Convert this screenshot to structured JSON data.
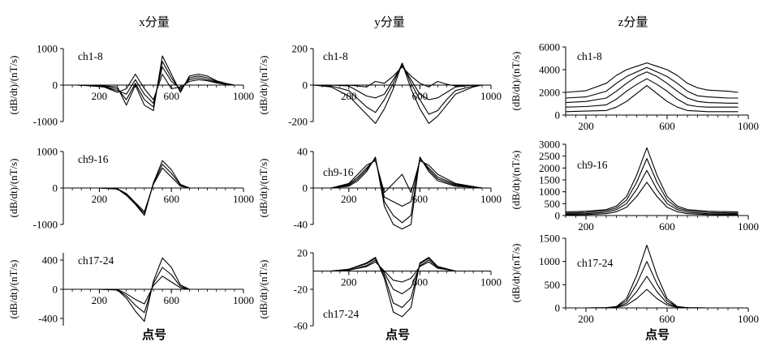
{
  "figure": {
    "column_titles": [
      "x分量",
      "y分量",
      "z分量"
    ],
    "xlabel": "点号",
    "ylabel": "(dB/dt)/(nT/s)"
  },
  "chart_data": [
    {
      "type": "line",
      "component": "x",
      "channel_label": "ch1-8",
      "xlim": [
        0,
        1000
      ],
      "ylim": [
        -1000,
        1000
      ],
      "x_ticks": [
        200,
        600,
        1000
      ],
      "y_ticks": [
        -1000,
        0,
        1000
      ],
      "x": [
        0,
        75,
        150,
        225,
        300,
        350,
        400,
        450,
        500,
        550,
        600,
        650,
        700,
        750,
        800,
        850,
        900,
        950
      ],
      "series": [
        {
          "values": [
            0,
            0,
            -20,
            -50,
            -200,
            -100,
            300,
            -100,
            -400,
            300,
            -100,
            -50,
            100,
            150,
            120,
            60,
            20,
            0
          ]
        },
        {
          "values": [
            0,
            0,
            -15,
            -50,
            -150,
            -250,
            150,
            -250,
            -500,
            500,
            100,
            -100,
            150,
            200,
            150,
            80,
            30,
            0
          ]
        },
        {
          "values": [
            0,
            0,
            -10,
            -40,
            -100,
            -400,
            50,
            -400,
            -600,
            650,
            200,
            -150,
            200,
            250,
            200,
            100,
            40,
            0
          ]
        },
        {
          "values": [
            0,
            0,
            -5,
            -20,
            -50,
            -550,
            0,
            -550,
            -700,
            800,
            300,
            -200,
            250,
            300,
            250,
            120,
            50,
            0
          ]
        }
      ]
    },
    {
      "type": "line",
      "component": "x",
      "channel_label": "ch9-16",
      "xlim": [
        0,
        1000
      ],
      "ylim": [
        -1000,
        1000
      ],
      "x_ticks": [
        200,
        600,
        1000
      ],
      "y_ticks": [
        -1000,
        0,
        1000
      ],
      "x": [
        0,
        100,
        200,
        300,
        350,
        400,
        450,
        500,
        550,
        600,
        650,
        700,
        800,
        950
      ],
      "series": [
        {
          "values": [
            0,
            0,
            0,
            -20,
            -150,
            -400,
            -650,
            100,
            550,
            300,
            50,
            0,
            0,
            0
          ]
        },
        {
          "values": [
            0,
            0,
            0,
            -25,
            -180,
            -430,
            -700,
            120,
            650,
            400,
            80,
            0,
            0,
            0
          ]
        },
        {
          "values": [
            0,
            0,
            0,
            -30,
            -200,
            -450,
            -750,
            140,
            750,
            500,
            100,
            0,
            0,
            0
          ]
        }
      ]
    },
    {
      "type": "line",
      "component": "x",
      "channel_label": "ch17-24",
      "xlim": [
        0,
        1000
      ],
      "ylim": [
        -500,
        500
      ],
      "x_ticks": [
        200,
        600,
        1000
      ],
      "y_ticks": [
        -400,
        0,
        400
      ],
      "x": [
        0,
        100,
        200,
        300,
        350,
        400,
        450,
        500,
        550,
        600,
        650,
        700,
        800,
        950
      ],
      "series": [
        {
          "values": [
            0,
            0,
            0,
            -5,
            -60,
            -140,
            -200,
            50,
            180,
            100,
            20,
            0,
            0,
            0
          ]
        },
        {
          "values": [
            0,
            0,
            0,
            -8,
            -90,
            -220,
            -320,
            80,
            300,
            200,
            40,
            0,
            0,
            0
          ]
        },
        {
          "values": [
            0,
            0,
            0,
            -10,
            -120,
            -300,
            -440,
            110,
            430,
            300,
            60,
            0,
            0,
            0
          ]
        }
      ]
    },
    {
      "type": "line",
      "component": "y",
      "channel_label": "ch1-8",
      "xlim": [
        0,
        1000
      ],
      "ylim": [
        -200,
        200
      ],
      "x_ticks": [
        200,
        600,
        1000
      ],
      "y_ticks": [
        -200,
        0,
        200
      ],
      "x": [
        0,
        100,
        200,
        300,
        350,
        400,
        450,
        500,
        550,
        600,
        650,
        700,
        750,
        800,
        900,
        950
      ],
      "series": [
        {
          "values": [
            0,
            0,
            0,
            -10,
            20,
            10,
            50,
            100,
            50,
            10,
            -10,
            20,
            5,
            -5,
            0,
            0
          ]
        },
        {
          "values": [
            0,
            0,
            -5,
            -60,
            -70,
            -50,
            30,
            110,
            30,
            -50,
            -80,
            -70,
            -40,
            -10,
            0,
            0
          ]
        },
        {
          "values": [
            0,
            -5,
            -30,
            -120,
            -150,
            -80,
            10,
            120,
            10,
            -80,
            -160,
            -140,
            -80,
            -30,
            -5,
            0
          ]
        },
        {
          "values": [
            0,
            -10,
            -60,
            -160,
            -210,
            -130,
            -20,
            120,
            -20,
            -130,
            -210,
            -170,
            -110,
            -50,
            -10,
            0
          ]
        }
      ]
    },
    {
      "type": "line",
      "component": "y",
      "channel_label": "ch9-16",
      "xlim": [
        0,
        1000
      ],
      "ylim": [
        -40,
        40
      ],
      "x_ticks": [
        200,
        600,
        1000
      ],
      "y_ticks": [
        -40,
        0,
        40
      ],
      "x": [
        0,
        100,
        200,
        250,
        300,
        350,
        400,
        450,
        500,
        550,
        600,
        650,
        700,
        800,
        950
      ],
      "series": [
        {
          "values": [
            0,
            0,
            5,
            15,
            25,
            30,
            -5,
            5,
            15,
            -5,
            30,
            25,
            15,
            5,
            0
          ]
        },
        {
          "values": [
            0,
            0,
            4,
            12,
            22,
            32,
            -10,
            -15,
            -20,
            -15,
            32,
            22,
            12,
            4,
            0
          ]
        },
        {
          "values": [
            0,
            0,
            3,
            10,
            20,
            33,
            -15,
            -30,
            -38,
            -30,
            33,
            20,
            10,
            3,
            0
          ]
        },
        {
          "values": [
            0,
            0,
            2,
            8,
            18,
            34,
            -20,
            -40,
            -45,
            -40,
            34,
            18,
            8,
            2,
            0
          ]
        }
      ]
    },
    {
      "type": "line",
      "component": "y",
      "channel_label": "ch17-24",
      "xlim": [
        0,
        1000
      ],
      "ylim": [
        -60,
        20
      ],
      "x_ticks": [
        200,
        600,
        1000
      ],
      "y_ticks": [
        -60,
        -20,
        20
      ],
      "x": [
        0,
        100,
        200,
        300,
        350,
        400,
        450,
        500,
        550,
        600,
        650,
        700,
        800,
        950
      ],
      "series": [
        {
          "values": [
            0,
            0,
            1,
            5,
            10,
            0,
            -10,
            -12,
            -8,
            5,
            10,
            3,
            0,
            0
          ]
        },
        {
          "values": [
            0,
            0,
            1,
            6,
            12,
            -2,
            -20,
            -25,
            -18,
            6,
            12,
            4,
            0,
            0
          ]
        },
        {
          "values": [
            0,
            0,
            2,
            8,
            14,
            -5,
            -35,
            -40,
            -30,
            8,
            14,
            5,
            0,
            0
          ]
        },
        {
          "values": [
            0,
            0,
            2,
            9,
            15,
            -8,
            -45,
            -50,
            -40,
            9,
            15,
            5,
            0,
            0
          ]
        }
      ]
    },
    {
      "type": "line",
      "component": "z",
      "channel_label": "ch1-8",
      "xlim": [
        100,
        1000
      ],
      "ylim": [
        0,
        6000
      ],
      "x_ticks": [
        200,
        600,
        1000
      ],
      "y_ticks": [
        0,
        2000,
        4000,
        6000
      ],
      "x": [
        100,
        200,
        300,
        350,
        400,
        450,
        500,
        550,
        600,
        650,
        700,
        750,
        800,
        900,
        950
      ],
      "series": [
        {
          "values": [
            2000,
            2150,
            2800,
            3500,
            4000,
            4300,
            4600,
            4300,
            4000,
            3500,
            2800,
            2400,
            2200,
            2100,
            2000
          ]
        },
        {
          "values": [
            1500,
            1600,
            2100,
            2800,
            3400,
            3800,
            4200,
            3800,
            3400,
            2800,
            2100,
            1700,
            1600,
            1500,
            1500
          ]
        },
        {
          "values": [
            1100,
            1200,
            1500,
            2100,
            2800,
            3400,
            3800,
            3400,
            2800,
            2100,
            1500,
            1200,
            1100,
            1050,
            1050
          ]
        },
        {
          "values": [
            700,
            750,
            900,
            1400,
            2100,
            2700,
            3200,
            2700,
            2100,
            1400,
            900,
            750,
            700,
            700,
            700
          ]
        },
        {
          "values": [
            300,
            350,
            400,
            700,
            1200,
            1900,
            2600,
            1900,
            1200,
            700,
            400,
            350,
            300,
            300,
            300
          ]
        }
      ]
    },
    {
      "type": "line",
      "component": "z",
      "channel_label": "ch9-16",
      "xlim": [
        100,
        1000
      ],
      "ylim": [
        0,
        3000
      ],
      "x_ticks": [
        200,
        600,
        1000
      ],
      "y_ticks": [
        0,
        500,
        1000,
        1500,
        2000,
        2500,
        3000
      ],
      "x": [
        100,
        200,
        300,
        350,
        400,
        450,
        500,
        550,
        600,
        650,
        700,
        800,
        950
      ],
      "series": [
        {
          "values": [
            150,
            180,
            250,
            400,
            800,
            1700,
            2850,
            1700,
            800,
            400,
            250,
            180,
            150
          ]
        },
        {
          "values": [
            100,
            130,
            200,
            320,
            650,
            1400,
            2400,
            1400,
            650,
            320,
            200,
            130,
            100
          ]
        },
        {
          "values": [
            60,
            80,
            140,
            250,
            500,
            1100,
            1900,
            1100,
            500,
            250,
            140,
            80,
            60
          ]
        },
        {
          "values": [
            30,
            40,
            80,
            160,
            350,
            800,
            1400,
            800,
            350,
            160,
            80,
            40,
            30
          ]
        }
      ]
    },
    {
      "type": "line",
      "component": "z",
      "channel_label": "ch17-24",
      "xlim": [
        100,
        1000
      ],
      "ylim": [
        0,
        1500
      ],
      "x_ticks": [
        200,
        600,
        1000
      ],
      "y_ticks": [
        0,
        500,
        1000,
        1500
      ],
      "x": [
        100,
        200,
        300,
        350,
        400,
        450,
        500,
        550,
        600,
        650,
        700,
        800,
        950
      ],
      "series": [
        {
          "values": [
            0,
            0,
            5,
            30,
            200,
            700,
            1350,
            700,
            200,
            30,
            5,
            0,
            0
          ]
        },
        {
          "values": [
            0,
            0,
            4,
            25,
            150,
            520,
            1000,
            520,
            150,
            25,
            4,
            0,
            0
          ]
        },
        {
          "values": [
            0,
            0,
            3,
            18,
            100,
            350,
            680,
            350,
            100,
            18,
            3,
            0,
            0
          ]
        },
        {
          "values": [
            0,
            0,
            2,
            10,
            60,
            200,
            400,
            200,
            60,
            10,
            2,
            0,
            0
          ]
        }
      ]
    }
  ]
}
